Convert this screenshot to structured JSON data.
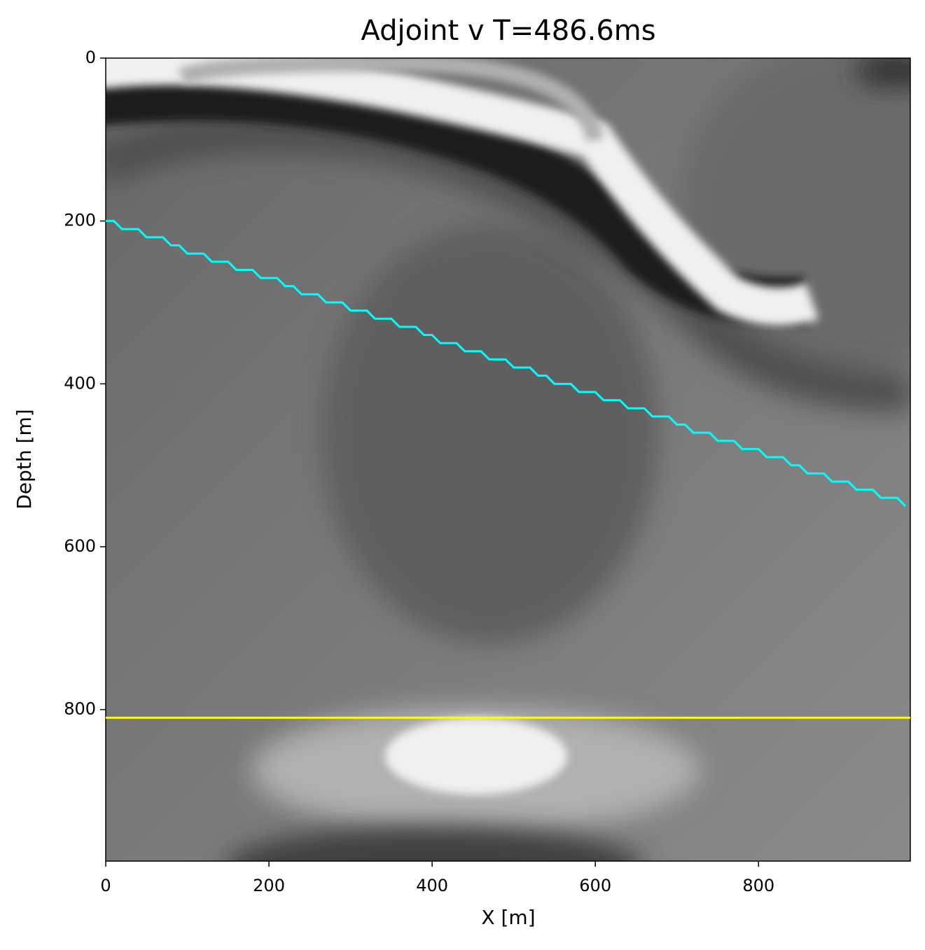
{
  "chart_data": {
    "type": "line",
    "title": "Adjoint v T=486.6ms",
    "xlabel": "X [m]",
    "ylabel": "Depth [m]",
    "xlim": [
      0,
      986
    ],
    "ylim": [
      986,
      0
    ],
    "xticks": [
      0,
      200,
      400,
      600,
      800
    ],
    "yticks": [
      0,
      200,
      400,
      600,
      800
    ],
    "series": [
      {
        "color": "#00ffff",
        "x": [
          0,
          10,
          20,
          30,
          40,
          50,
          60,
          70,
          80,
          90,
          100,
          110,
          120,
          130,
          140,
          150,
          160,
          170,
          180,
          190,
          200,
          210,
          220,
          230,
          240,
          250,
          260,
          270,
          280,
          290,
          300,
          310,
          320,
          330,
          340,
          350,
          360,
          370,
          380,
          390,
          400,
          410,
          420,
          430,
          440,
          450,
          460,
          470,
          480,
          490,
          500,
          510,
          520,
          530,
          540,
          550,
          560,
          570,
          580,
          590,
          600,
          610,
          620,
          630,
          640,
          650,
          660,
          670,
          680,
          690,
          700,
          710,
          720,
          730,
          740,
          750,
          760,
          770,
          780,
          790,
          800,
          810,
          820,
          830,
          840,
          850,
          860,
          870,
          880,
          890,
          900,
          910,
          920,
          930,
          940,
          950,
          960,
          970,
          980
        ],
        "values": [
          200,
          200,
          210,
          210,
          210,
          220,
          220,
          220,
          230,
          230,
          240,
          240,
          240,
          250,
          250,
          250,
          260,
          260,
          260,
          270,
          270,
          270,
          280,
          280,
          290,
          290,
          290,
          300,
          300,
          300,
          310,
          310,
          310,
          320,
          320,
          320,
          330,
          330,
          330,
          340,
          340,
          350,
          350,
          350,
          360,
          360,
          360,
          370,
          370,
          370,
          380,
          380,
          380,
          390,
          390,
          400,
          400,
          400,
          410,
          410,
          410,
          420,
          420,
          420,
          430,
          430,
          430,
          440,
          440,
          440,
          450,
          450,
          460,
          460,
          460,
          470,
          470,
          470,
          480,
          480,
          480,
          490,
          490,
          490,
          500,
          500,
          510,
          510,
          510,
          520,
          520,
          520,
          530,
          530,
          530,
          540,
          540,
          540,
          550
        ]
      },
      {
        "color": "#ffff00",
        "x": [
          0,
          986
        ],
        "values": [
          810,
          810
        ]
      }
    ]
  }
}
